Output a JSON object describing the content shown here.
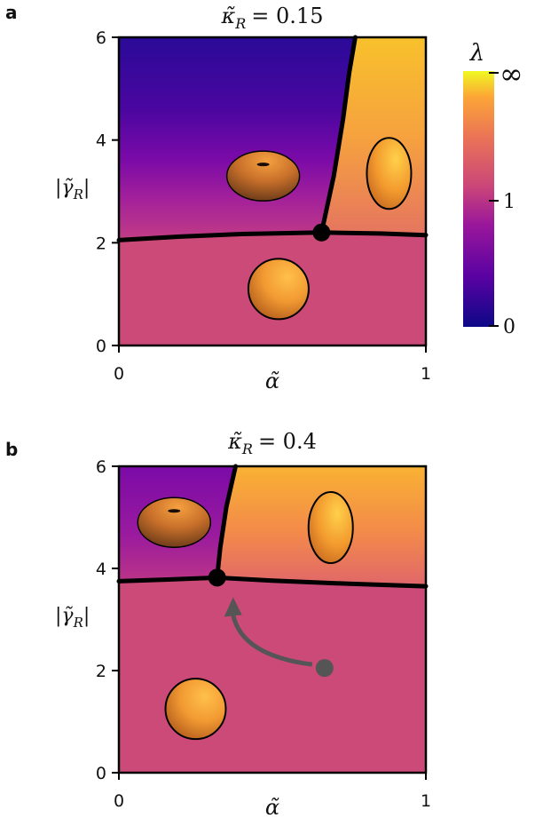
{
  "chart_data": [
    {
      "panel_label": "a",
      "type": "heatmap",
      "title_symbol": "κ̃",
      "title_subscript": "R",
      "title_value": "= 0.15",
      "xlabel": "α̃",
      "ylabel": "|γ̃",
      "ylabel_subscript": "R",
      "ylabel_close": "|",
      "xlim": [
        0,
        1
      ],
      "ylim": [
        0,
        6
      ],
      "xticks": [
        "0",
        "1"
      ],
      "yticks": [
        "0",
        "2",
        "4",
        "6"
      ],
      "triple_point": {
        "x": 0.66,
        "y": 2.2
      },
      "boundary_lower": [
        [
          0,
          2.05
        ],
        [
          0.2,
          2.12
        ],
        [
          0.4,
          2.17
        ],
        [
          0.66,
          2.2
        ],
        [
          0.85,
          2.18
        ],
        [
          1.0,
          2.15
        ]
      ],
      "boundary_upper": [
        [
          0.66,
          2.2
        ],
        [
          0.7,
          3.3
        ],
        [
          0.73,
          4.4
        ],
        [
          0.75,
          5.3
        ],
        [
          0.77,
          6.0
        ]
      ],
      "shapes": [
        {
          "name": "oblate",
          "x": 0.47,
          "y": 3.3
        },
        {
          "name": "prolate",
          "x": 0.88,
          "y": 3.35
        },
        {
          "name": "sphere",
          "x": 0.52,
          "y": 1.1
        }
      ]
    },
    {
      "panel_label": "b",
      "type": "heatmap",
      "title_symbol": "κ̃",
      "title_subscript": "R",
      "title_value": "= 0.4",
      "xlabel": "α̃",
      "ylabel": "|γ̃",
      "ylabel_subscript": "R",
      "ylabel_close": "|",
      "xlim": [
        0,
        1
      ],
      "ylim": [
        0,
        6
      ],
      "xticks": [
        "0",
        "1"
      ],
      "yticks": [
        "0",
        "2",
        "4",
        "6"
      ],
      "triple_point": {
        "x": 0.32,
        "y": 3.82
      },
      "boundary_lower": [
        [
          0,
          3.75
        ],
        [
          0.15,
          3.78
        ],
        [
          0.32,
          3.82
        ],
        [
          0.5,
          3.76
        ],
        [
          0.75,
          3.7
        ],
        [
          1.0,
          3.65
        ]
      ],
      "boundary_upper": [
        [
          0.32,
          3.82
        ],
        [
          0.33,
          4.4
        ],
        [
          0.35,
          5.2
        ],
        [
          0.38,
          6.0
        ]
      ],
      "previous_point": {
        "x": 0.67,
        "y": 2.05
      },
      "shapes": [
        {
          "name": "oblate",
          "x": 0.18,
          "y": 4.9
        },
        {
          "name": "prolate",
          "x": 0.69,
          "y": 4.8
        },
        {
          "name": "sphere",
          "x": 0.25,
          "y": 1.25
        }
      ]
    }
  ],
  "colorbar": {
    "label": "λ",
    "ticks": [
      "0",
      "1",
      "∞"
    ],
    "colors": [
      "#0d0887",
      "#6a00a8",
      "#b12a90",
      "#e16462",
      "#fca636",
      "#f0f921"
    ]
  },
  "colors": {
    "region_lower": "#cc4a78",
    "boundary": "#000000",
    "arrow": "#555555"
  }
}
